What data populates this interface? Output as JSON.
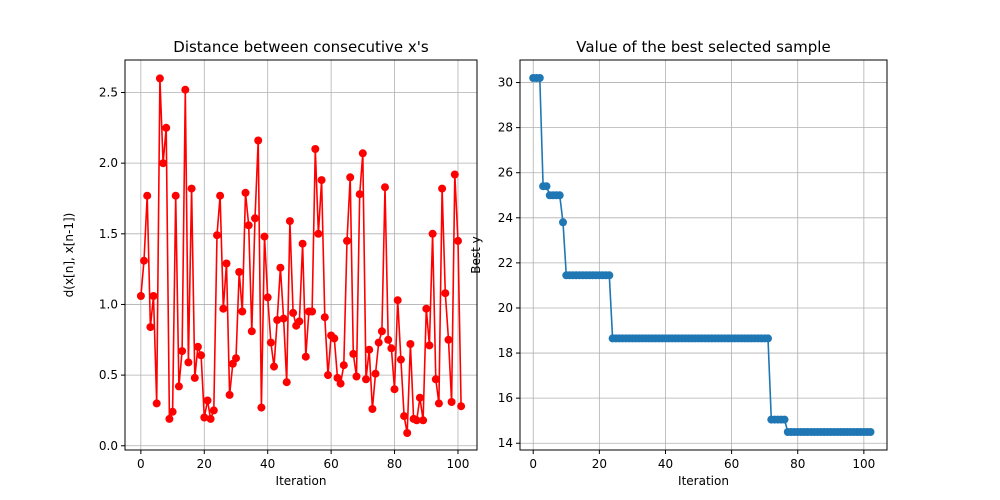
{
  "chart_data": [
    {
      "type": "line",
      "title": "Distance between consecutive x's",
      "xlabel": "Iteration",
      "ylabel": "d(x[n], x[n-1])",
      "xlim": [
        -5,
        106
      ],
      "ylim": [
        -0.03,
        2.73
      ],
      "xticks": [
        0,
        20,
        40,
        60,
        80,
        100
      ],
      "yticks": [
        0.0,
        0.5,
        1.0,
        1.5,
        2.0,
        2.5
      ],
      "ytick_labels": [
        "0.0",
        "0.5",
        "1.0",
        "1.5",
        "2.0",
        "2.5"
      ],
      "grid": true,
      "color": "#ff0000",
      "marker": "circle",
      "series": [
        {
          "x": [
            0,
            1,
            2,
            3,
            4,
            5,
            6,
            7,
            8,
            9,
            10,
            11,
            12,
            13,
            14,
            15,
            16,
            17,
            18,
            19,
            20,
            21,
            22,
            23,
            24,
            25,
            26,
            27,
            28,
            29,
            30,
            31,
            32,
            33,
            34,
            35,
            36,
            37,
            38,
            39,
            40,
            41,
            42,
            43,
            44,
            45,
            46,
            47,
            48,
            49,
            50,
            51,
            52,
            53,
            54,
            55,
            56,
            57,
            58,
            59,
            60,
            61,
            62,
            63,
            64,
            65,
            66,
            67,
            68,
            69,
            70,
            71,
            72,
            73,
            74,
            75,
            76,
            77,
            78,
            79,
            80,
            81,
            82,
            83,
            84,
            85,
            86,
            87,
            88,
            89,
            90,
            91,
            92,
            93,
            94,
            95,
            96,
            97,
            98,
            99,
            100,
            101
          ],
          "values": [
            1.06,
            1.31,
            1.77,
            0.84,
            1.06,
            0.3,
            2.6,
            2.0,
            2.25,
            0.19,
            0.24,
            1.77,
            0.42,
            0.67,
            2.52,
            0.59,
            1.82,
            0.48,
            0.7,
            0.64,
            0.2,
            0.32,
            0.19,
            0.25,
            1.49,
            1.77,
            0.97,
            1.29,
            0.36,
            0.58,
            0.62,
            1.23,
            0.95,
            1.79,
            1.56,
            0.81,
            1.61,
            2.16,
            0.27,
            1.48,
            1.05,
            0.73,
            0.56,
            0.89,
            1.26,
            0.9,
            0.45,
            1.59,
            0.94,
            0.85,
            0.88,
            1.43,
            0.63,
            0.95,
            0.95,
            2.1,
            1.5,
            1.88,
            0.91,
            0.5,
            0.78,
            0.76,
            0.48,
            0.44,
            0.57,
            1.45,
            1.9,
            0.65,
            0.49,
            1.78,
            2.07,
            0.47,
            0.68,
            0.26,
            0.51,
            0.73,
            0.81,
            1.83,
            0.75,
            0.69,
            0.4,
            1.03,
            0.61,
            0.21,
            0.09,
            0.72,
            0.19,
            0.18,
            0.34,
            0.18,
            0.97,
            0.71,
            1.5,
            0.47,
            0.3,
            1.82,
            1.08,
            0.75,
            0.31,
            1.92,
            1.45,
            0.28
          ]
        }
      ]
    },
    {
      "type": "line",
      "title": "Value of the best selected sample",
      "xlabel": "Iteration",
      "ylabel": "Best y",
      "xlim": [
        -4,
        107
      ],
      "ylim": [
        13.7,
        31.0
      ],
      "xticks": [
        0,
        20,
        40,
        60,
        80,
        100
      ],
      "yticks": [
        14,
        16,
        18,
        20,
        22,
        24,
        26,
        28,
        30
      ],
      "ytick_labels": [
        "14",
        "16",
        "18",
        "20",
        "22",
        "24",
        "26",
        "28",
        "30"
      ],
      "grid": true,
      "color": "#1f77b4",
      "marker": "circle",
      "segments": [
        {
          "from": 0,
          "to": 2,
          "value": 30.2
        },
        {
          "from": 3,
          "to": 4,
          "value": 25.4
        },
        {
          "from": 5,
          "to": 8,
          "value": 25.0
        },
        {
          "from": 9,
          "to": 9,
          "value": 23.8
        },
        {
          "from": 10,
          "to": 23,
          "value": 21.45
        },
        {
          "from": 24,
          "to": 71,
          "value": 18.65
        },
        {
          "from": 72,
          "to": 76,
          "value": 15.05
        },
        {
          "from": 77,
          "to": 102,
          "value": 14.5
        }
      ]
    }
  ]
}
